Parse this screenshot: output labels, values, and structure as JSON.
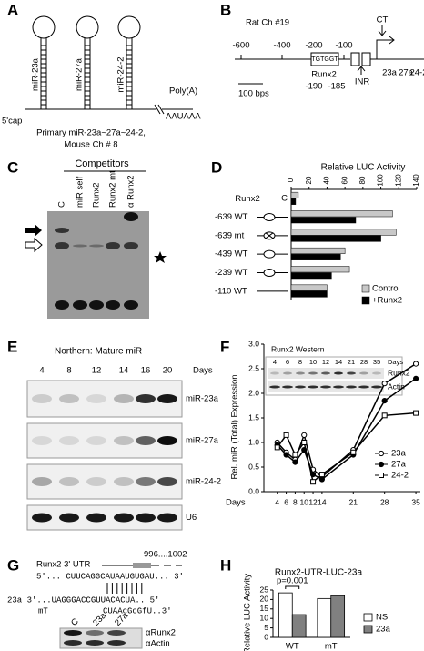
{
  "panels": {
    "A": {
      "label": "A",
      "hairpins": [
        "miR-23a",
        "miR-27a",
        "miR-24-2"
      ],
      "cap": "5'cap",
      "polya": "Poly(A)",
      "signal": "AAUAAA",
      "caption": [
        "Primary miR-23a~27a~24-2,",
        "Mouse Ch # 8"
      ]
    },
    "B": {
      "label": "B",
      "locus": "Rat  Ch #19",
      "positions": [
        "-600",
        "-400",
        "-200",
        "-100"
      ],
      "ct": "CT",
      "motif": "TGTGGT",
      "factor": "Runx2",
      "sites": [
        "-190",
        "-185"
      ],
      "inr": "INR",
      "scale": "100 bps",
      "genes": [
        "23a",
        "27a",
        "24-2"
      ]
    },
    "C": {
      "label": "C",
      "heading": "Competitors",
      "lanes": [
        "C",
        "miR self",
        "Runx2",
        "Runx2 mt",
        "α Runx2"
      ]
    },
    "D": {
      "label": "D",
      "construct": "Runx2"
    },
    "E": {
      "label": "E",
      "title": "Northern: Mature miR",
      "days": [
        "4",
        "8",
        "12",
        "14",
        "16",
        "20"
      ],
      "days_label": "Days",
      "blots": [
        "miR-23a",
        "miR-27a",
        "miR-24-2",
        "U6"
      ]
    },
    "F": {
      "label": "F",
      "inset": {
        "title": "Runx2 Western",
        "days": [
          "4",
          "6",
          "8",
          "10",
          "12",
          "14",
          "21",
          "28",
          "35"
        ],
        "days_label": "Days",
        "blots": [
          "Runx2",
          "Actin"
        ]
      }
    },
    "G": {
      "label": "G",
      "utr": "Runx2 3' UTR",
      "site": "996....1002",
      "seq": "5'... CUUCAGGCAUAAUGUGAU... 3'",
      "mir": "23a 3'...UAGGGACCGUUACACUA.. 5'",
      "mut_label": "mT",
      "mut": "CUAAcGcGfU..3'",
      "lanes": [
        "C",
        "23a",
        "27a"
      ],
      "blots": [
        "αRunx2",
        "αActin"
      ]
    },
    "H": {
      "label": "H"
    }
  },
  "chart_data": [
    {
      "type": "barh",
      "title": "Relative LUC Activity",
      "categories": [
        "C",
        "-639 WT",
        "-639 mt",
        "-439 WT",
        "-239 WT",
        "-110 WT"
      ],
      "series": [
        {
          "name": "Control",
          "color": "#c8c8c8",
          "values": [
            8,
            113,
            117,
            60,
            65,
            40
          ]
        },
        {
          "name": "+Runx2",
          "color": "#000000",
          "values": [
            5,
            72,
            100,
            55,
            45,
            40
          ]
        }
      ],
      "xlim": [
        0,
        140
      ],
      "xticks": [
        0,
        20,
        40,
        60,
        80,
        100,
        120,
        140
      ]
    },
    {
      "type": "line",
      "ylabel": "Rel. miR (Total) Expression",
      "xlabel": "Days",
      "x": [
        4,
        6,
        8,
        10,
        12,
        14,
        21,
        28,
        35
      ],
      "xlim": [
        1,
        36
      ],
      "xticks": [
        4,
        6,
        8,
        10,
        12,
        14,
        21,
        28,
        35
      ],
      "ylim": [
        0,
        3
      ],
      "yticks": [
        {
          "value": 0,
          "label": "0.0"
        },
        0.5,
        {
          "value": 1,
          "label": "1.0"
        },
        1.5,
        {
          "value": 2,
          "label": "2.0"
        },
        2.5,
        {
          "value": 3,
          "label": "3.0"
        }
      ],
      "series": [
        {
          "name": "23a",
          "color": "#000000",
          "marker": "circle",
          "filled": false,
          "values": [
            1.0,
            0.8,
            0.65,
            1.15,
            0.45,
            0.3,
            0.85,
            2.2,
            2.6
          ]
        },
        {
          "name": "27a",
          "color": "#000000",
          "marker": "circle",
          "filled": true,
          "values": [
            0.95,
            0.75,
            0.6,
            0.85,
            0.35,
            0.25,
            0.75,
            1.85,
            2.3
          ]
        },
        {
          "name": "24-2",
          "color": "#000000",
          "marker": "square",
          "filled": false,
          "values": [
            0.9,
            1.15,
            0.75,
            1.0,
            0.2,
            0.35,
            0.8,
            1.55,
            1.6
          ]
        }
      ]
    },
    {
      "type": "bar",
      "title": "Runx2-UTR-LUC-23a",
      "ylabel": "Relative LUC Activity",
      "annotation": "p=0.001",
      "categories": [
        "WT",
        "mT"
      ],
      "series": [
        {
          "name": "NS",
          "color": "#ffffff",
          "values": [
            23.5,
            20.5
          ]
        },
        {
          "name": "23a",
          "color": "#808080",
          "values": [
            12,
            22
          ]
        }
      ],
      "ylim": [
        0,
        25
      ],
      "yticks": [
        0,
        5,
        10,
        15,
        20,
        25
      ]
    }
  ]
}
